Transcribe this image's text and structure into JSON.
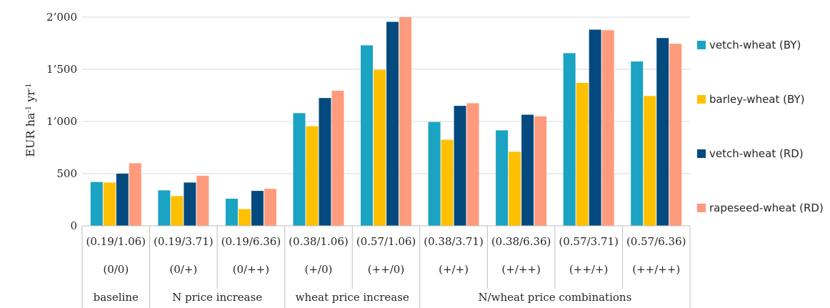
{
  "chart_data": {
    "type": "bar",
    "ylabel_base": "EUR ha",
    "ylabel_sup1": "-1",
    "ylabel_mid": " yr",
    "ylabel_sup2": "-1",
    "ylim": [
      0,
      2000
    ],
    "yticks": [
      0,
      500,
      1000,
      1500,
      2000
    ],
    "ytick_labels": [
      "0",
      "500",
      "1’000",
      "1’500",
      "2’000"
    ],
    "grid": true,
    "legend_position": "right",
    "categories": [
      "(0.19/1.06)",
      "(0.19/3.71)",
      "(0.19/6.36)",
      "(0.38/1.06)",
      "(0.57/1.06)",
      "(0.38/3.71)",
      "(0.38/6.36)",
      "(0.57/3.71)",
      "(0.57/6.36)"
    ],
    "category_codes": [
      "(0/0)",
      "(0/+)",
      "(0/++)",
      "(+/0)",
      "(++/0)",
      "(+/+)",
      "(+/++)",
      "(++/+)",
      "(++/++)"
    ],
    "groups": [
      {
        "label": "baseline",
        "span": 1
      },
      {
        "label": "N price increase",
        "span": 2
      },
      {
        "label": "wheat price increase",
        "span": 2
      },
      {
        "label": "N/wheat price combinations",
        "span": 4
      }
    ],
    "series": [
      {
        "name": "vetch-wheat (BY)",
        "color": "#1aa3c2",
        "values": [
          420,
          340,
          260,
          1080,
          1730,
          995,
          915,
          1655,
          1575
        ]
      },
      {
        "name": "barley-wheat (BY)",
        "color": "#ffc000",
        "values": [
          415,
          285,
          160,
          955,
          1495,
          825,
          710,
          1370,
          1245
        ]
      },
      {
        "name": "vetch-wheat (RD)",
        "color": "#044a7e",
        "values": [
          500,
          415,
          335,
          1225,
          1955,
          1150,
          1065,
          1880,
          1800
        ]
      },
      {
        "name": "rapeseed-wheat (RD)",
        "color": "#ff9b7c",
        "values": [
          600,
          480,
          355,
          1295,
          2000,
          1175,
          1050,
          1875,
          1745
        ]
      }
    ]
  }
}
